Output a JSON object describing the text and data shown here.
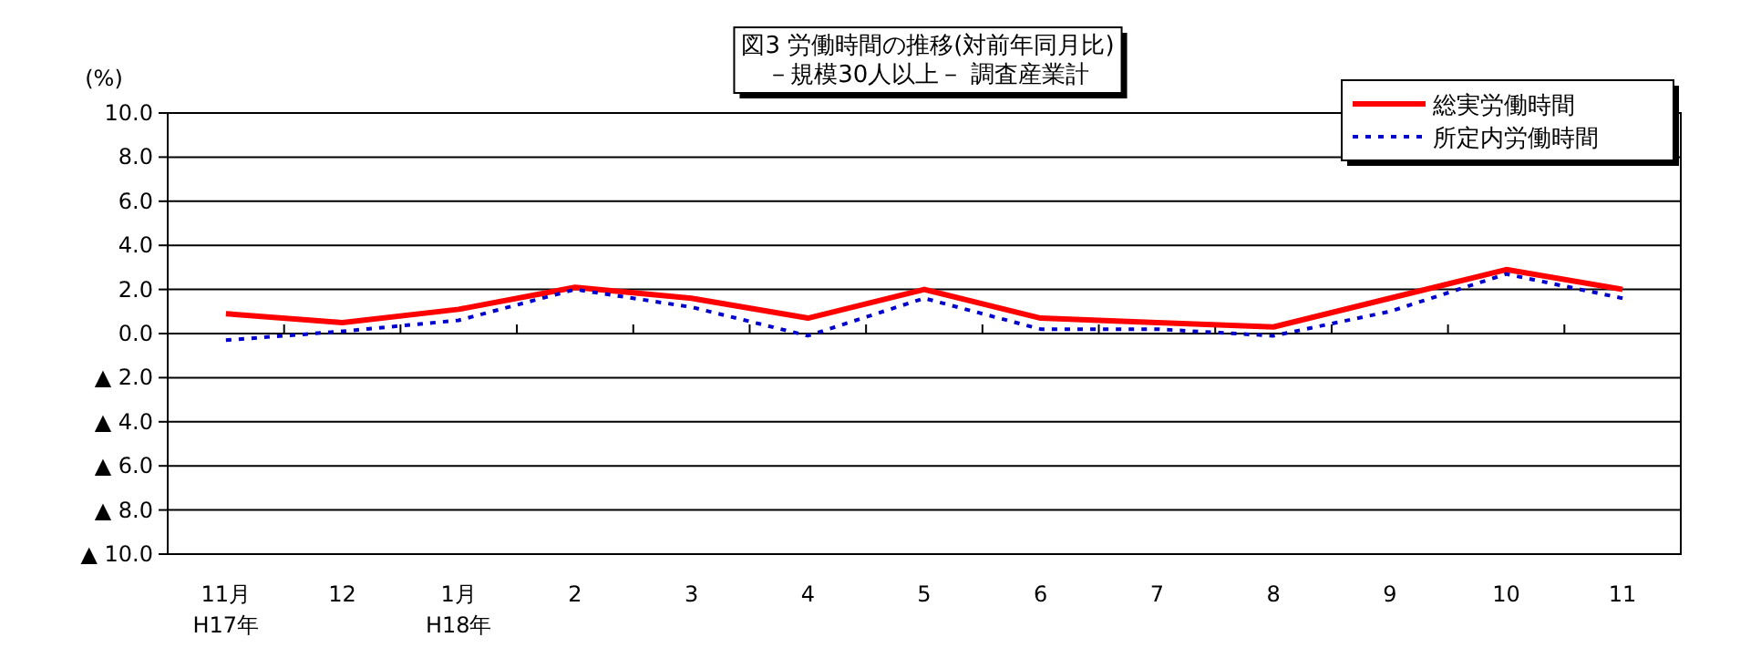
{
  "chart_data": {
    "type": "line",
    "title": "図3  労働時間の推移(対前年同月比)",
    "subtitle": "－規模30人以上－   調査産業計",
    "ylabel": "(%)",
    "categories": [
      "11月\nH17年",
      "12",
      "1月\nH18年",
      "2",
      "3",
      "4",
      "5",
      "6",
      "7",
      "8",
      "9",
      "10",
      "11"
    ],
    "series": [
      {
        "name": "総実労働時間",
        "color": "#ff0000",
        "line_style": "solid",
        "values": [
          0.9,
          0.5,
          1.1,
          2.1,
          1.6,
          0.7,
          2.0,
          0.7,
          0.5,
          0.3,
          1.6,
          2.9,
          2.0
        ]
      },
      {
        "name": "所定内労働時間",
        "color": "#0000cc",
        "line_style": "dotted",
        "values": [
          -0.3,
          0.1,
          0.6,
          2.0,
          1.2,
          -0.1,
          1.6,
          0.2,
          0.2,
          -0.1,
          1.0,
          2.7,
          1.6
        ]
      }
    ],
    "ylim": [
      -10,
      10
    ],
    "yticks": [
      {
        "value": 10,
        "label": "10.0"
      },
      {
        "value": 8,
        "label": "8.0"
      },
      {
        "value": 6,
        "label": "6.0"
      },
      {
        "value": 4,
        "label": "4.0"
      },
      {
        "value": 2,
        "label": "2.0"
      },
      {
        "value": 0,
        "label": "0.0"
      },
      {
        "value": -2,
        "label": "▲ 2.0"
      },
      {
        "value": -4,
        "label": "▲ 4.0"
      },
      {
        "value": -6,
        "label": "▲ 6.0"
      },
      {
        "value": -8,
        "label": "▲ 8.0"
      },
      {
        "value": -10,
        "label": "▲ 10.0"
      }
    ],
    "grid": "y",
    "legend": "top right",
    "marker": "none"
  }
}
